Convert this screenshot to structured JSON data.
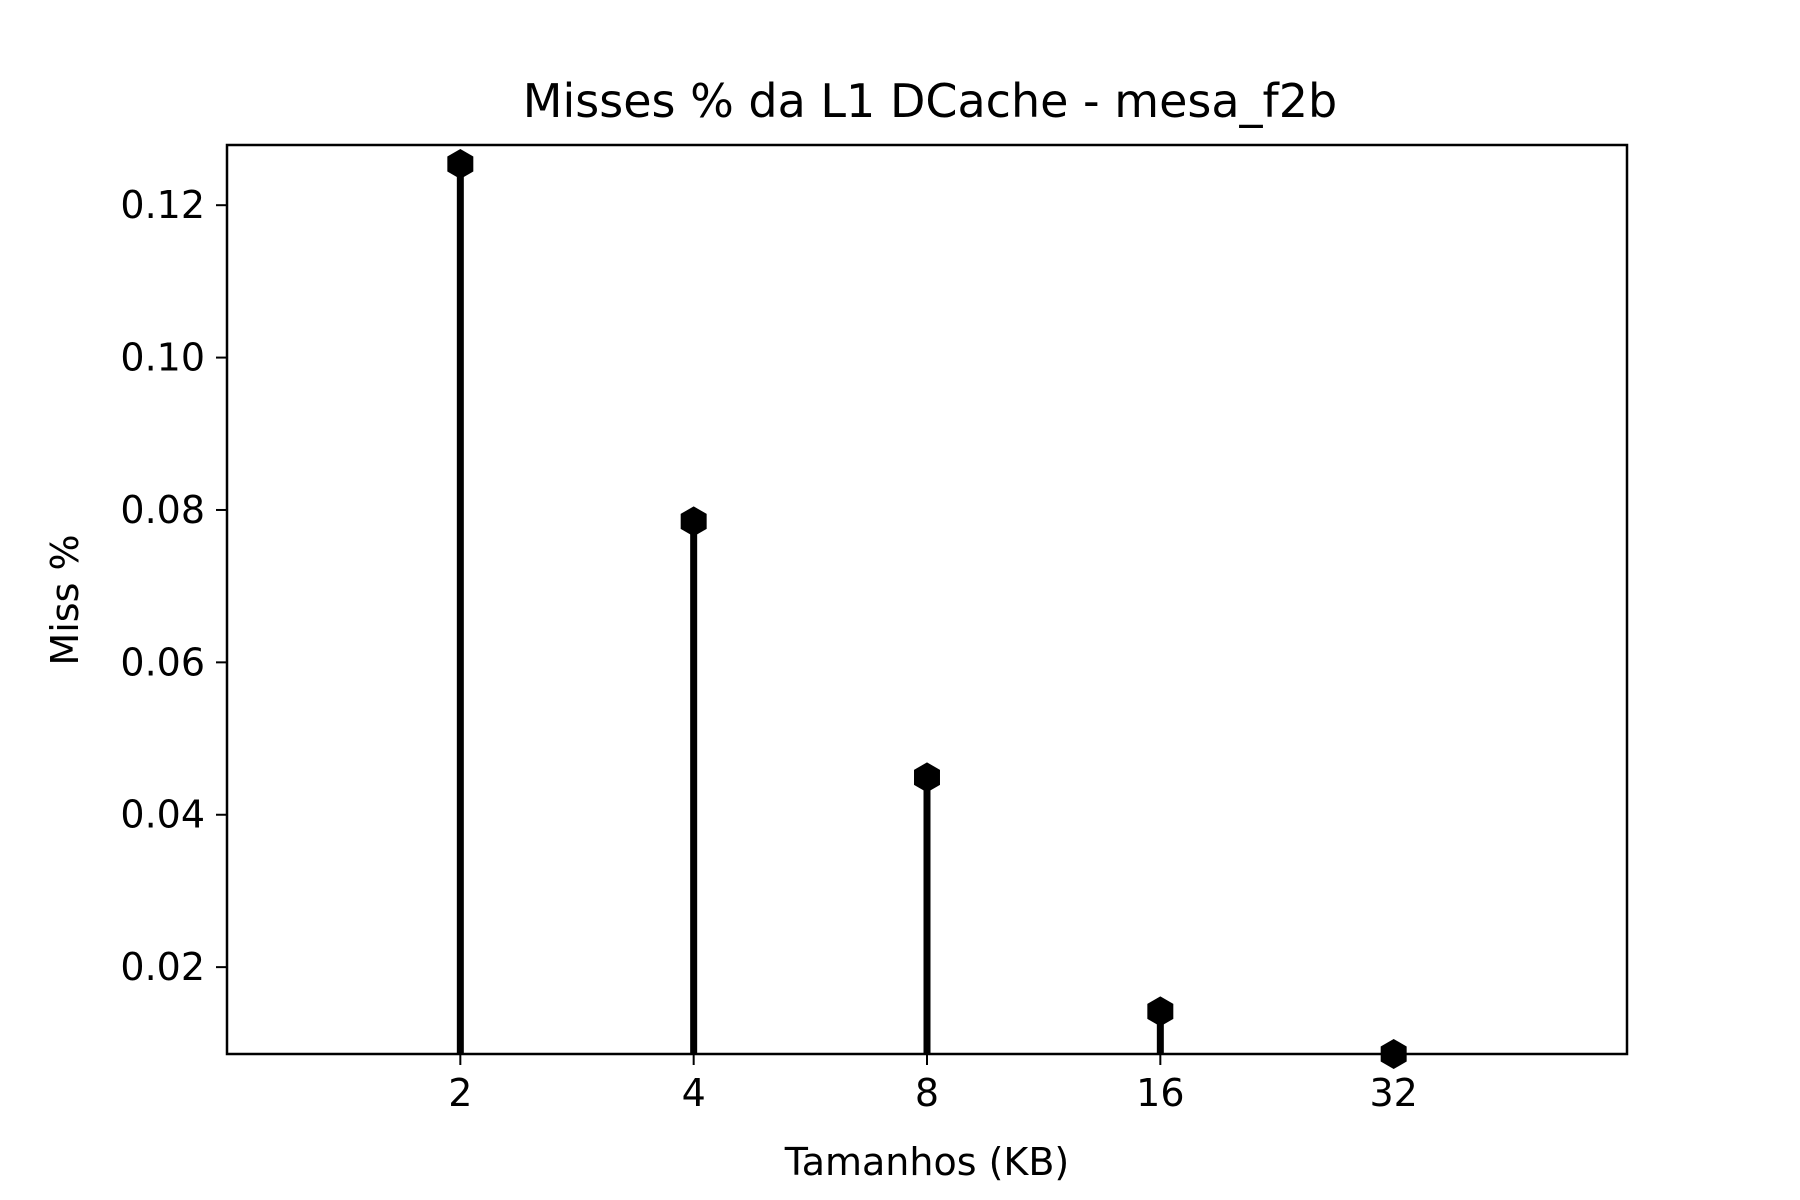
{
  "chart_data": {
    "type": "stem",
    "title": "Misses % da L1 DCache - mesa_f2b",
    "xlabel": "Tamanhos (KB)",
    "ylabel": "Miss %",
    "categories": [
      "2",
      "4",
      "8",
      "16",
      "32"
    ],
    "series": [
      {
        "values": [
          0.1254,
          0.0785,
          0.0449,
          0.0142,
          0.0086
        ]
      }
    ],
    "ylim": [
      0.0086,
      0.1279
    ],
    "xlim_categories_padding": 1,
    "y_ticks": [
      0.02,
      0.04,
      0.06,
      0.08,
      0.1,
      0.12
    ],
    "y_tick_labels": [
      "0.02",
      "0.04",
      "0.06",
      "0.08",
      "0.10",
      "0.12"
    ],
    "grid": false,
    "legend": "none",
    "marker": "hexagon",
    "colors": {
      "stem": "#000000",
      "marker": "#000000",
      "axes": "#000000",
      "background": "#ffffff"
    }
  }
}
